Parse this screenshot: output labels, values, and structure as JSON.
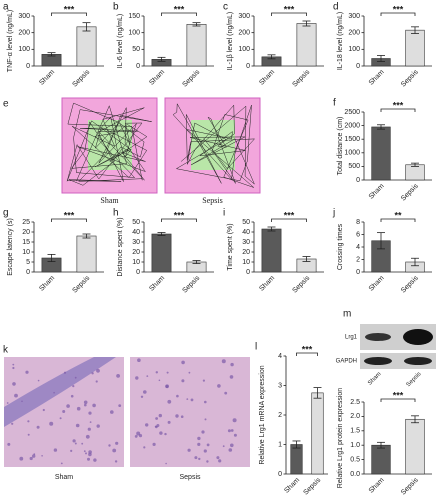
{
  "chart_data": [
    {
      "type": "bar",
      "panel": "a",
      "y_label": "TNF-α level (ng/mL)",
      "categories": [
        "Sham",
        "Sepsis"
      ],
      "values": [
        70,
        235
      ],
      "errors": [
        10,
        25
      ],
      "colors": [
        "#5a5a5a",
        "#dedede"
      ],
      "ylim": [
        0,
        300
      ],
      "yticks": [
        0,
        100,
        200,
        300
      ],
      "annotation": "***"
    },
    {
      "type": "bar",
      "panel": "b",
      "y_label": "IL-6 level (ng/mL)",
      "categories": [
        "Sham",
        "Sepsis"
      ],
      "values": [
        20,
        125
      ],
      "errors": [
        6,
        5
      ],
      "colors": [
        "#5a5a5a",
        "#dedede"
      ],
      "ylim": [
        0,
        150
      ],
      "yticks": [
        0,
        50,
        100,
        150
      ],
      "annotation": "***"
    },
    {
      "type": "bar",
      "panel": "c",
      "y_label": "IL-1β level (ng/mL)",
      "categories": [
        "Sham",
        "Sepsis"
      ],
      "values": [
        55,
        255
      ],
      "errors": [
        12,
        15
      ],
      "colors": [
        "#5a5a5a",
        "#dedede"
      ],
      "ylim": [
        0,
        300
      ],
      "yticks": [
        0,
        100,
        200,
        300
      ],
      "annotation": "***"
    },
    {
      "type": "bar",
      "panel": "d",
      "y_label": "IL-18 level (ng/mL)",
      "categories": [
        "Sham",
        "Sepsis"
      ],
      "values": [
        45,
        215
      ],
      "errors": [
        18,
        20
      ],
      "colors": [
        "#5a5a5a",
        "#dedede"
      ],
      "ylim": [
        0,
        300
      ],
      "yticks": [
        0,
        100,
        200,
        300
      ],
      "annotation": "***"
    },
    {
      "type": "bar",
      "panel": "f",
      "y_label": "Total distance (cm)",
      "categories": [
        "Sham",
        "Sepsis"
      ],
      "values": [
        1950,
        560
      ],
      "errors": [
        80,
        60
      ],
      "colors": [
        "#5a5a5a",
        "#dedede"
      ],
      "ylim": [
        0,
        2500
      ],
      "yticks": [
        0,
        500,
        1000,
        1500,
        2000,
        2500
      ],
      "annotation": "***"
    },
    {
      "type": "bar",
      "panel": "g",
      "y_label": "Escape latency (s)",
      "categories": [
        "Sham",
        "Sepsis"
      ],
      "values": [
        7,
        18
      ],
      "errors": [
        1.8,
        1
      ],
      "colors": [
        "#5a5a5a",
        "#dedede"
      ],
      "ylim": [
        0,
        25
      ],
      "yticks": [
        0,
        5,
        10,
        15,
        20,
        25
      ],
      "annotation": "***"
    },
    {
      "type": "bar",
      "panel": "h",
      "y_label": "Distance spent (%)",
      "categories": [
        "Sham",
        "Sepsis"
      ],
      "values": [
        38,
        10
      ],
      "errors": [
        1.5,
        1.5
      ],
      "colors": [
        "#5a5a5a",
        "#dedede"
      ],
      "ylim": [
        0,
        50
      ],
      "yticks": [
        0,
        10,
        20,
        30,
        40,
        50
      ],
      "annotation": "***"
    },
    {
      "type": "bar",
      "panel": "i",
      "y_label": "Time spent (%)",
      "categories": [
        "Sham",
        "Sepsis"
      ],
      "values": [
        43,
        13
      ],
      "errors": [
        2,
        2.5
      ],
      "colors": [
        "#5a5a5a",
        "#dedede"
      ],
      "ylim": [
        0,
        50
      ],
      "yticks": [
        0,
        10,
        20,
        30,
        40,
        50
      ],
      "annotation": "***"
    },
    {
      "type": "bar",
      "panel": "j",
      "y_label": "Crossing times",
      "categories": [
        "Sham",
        "Sepsis"
      ],
      "values": [
        5,
        1.6
      ],
      "errors": [
        1.3,
        0.6
      ],
      "colors": [
        "#5a5a5a",
        "#dedede"
      ],
      "ylim": [
        0,
        8
      ],
      "yticks": [
        0,
        2,
        4,
        6,
        8
      ],
      "annotation": "**"
    },
    {
      "type": "bar",
      "panel": "l",
      "y_label": "Relative Lrg1 mRNA expression",
      "categories": [
        "Sham",
        "Sepsis"
      ],
      "values": [
        1,
        2.75
      ],
      "errors": [
        0.12,
        0.18
      ],
      "colors": [
        "#5a5a5a",
        "#dedede"
      ],
      "ylim": [
        0,
        4
      ],
      "yticks": [
        0,
        1,
        2,
        3,
        4
      ],
      "annotation": "***"
    },
    {
      "type": "bar",
      "y_label": "Relative Lrg1 protein expression",
      "categories": [
        "Sham",
        "Sepsis"
      ],
      "values": [
        1,
        1.9
      ],
      "errors": [
        0.1,
        0.12
      ],
      "colors": [
        "#5a5a5a",
        "#dedede"
      ],
      "ylim": [
        0,
        2.5
      ],
      "yticks": [
        {
          "value": 0,
          "label": "0.0"
        },
        0.5,
        {
          "value": 1,
          "label": "1.0"
        },
        1.5,
        {
          "value": 2,
          "label": "2.0"
        },
        2.5
      ],
      "annotation": "***"
    }
  ],
  "open_field": {
    "panel": "e",
    "labels": [
      "Sham",
      "Sepsis"
    ]
  },
  "histology": {
    "panel": "k",
    "labels": [
      "Sham",
      "Sepsis"
    ]
  },
  "western_blot": {
    "panel": "m",
    "bands": [
      "Lrg1",
      "GAPDH"
    ],
    "lanes": [
      "Sham",
      "Sepsis"
    ]
  }
}
